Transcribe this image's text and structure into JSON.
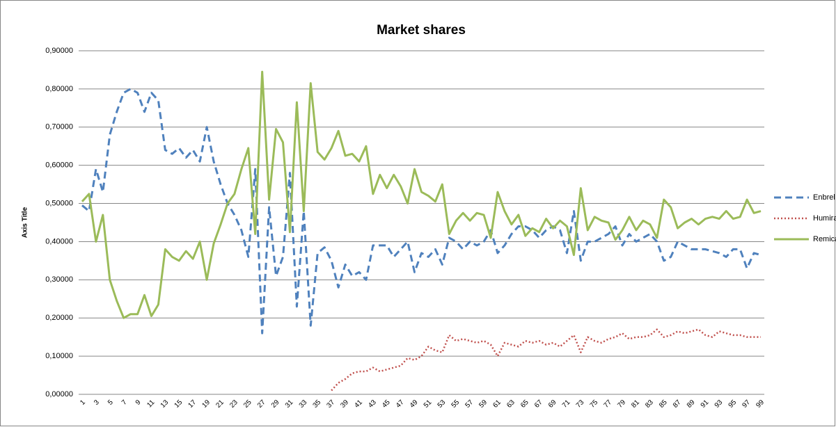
{
  "chart_data": {
    "type": "line",
    "title": "Market shares",
    "y_label": "Axis Title",
    "categories": [
      1,
      null,
      3,
      null,
      5,
      null,
      7,
      null,
      9,
      null,
      11,
      null,
      13,
      null,
      15,
      null,
      17,
      null,
      19,
      null,
      21,
      null,
      23,
      null,
      25,
      null,
      27,
      null,
      29,
      null,
      31,
      null,
      33,
      null,
      35,
      null,
      37,
      null,
      39,
      null,
      41,
      null,
      43,
      null,
      45,
      null,
      47,
      null,
      49,
      null,
      51,
      null,
      53,
      null,
      55,
      null,
      57,
      null,
      59,
      null,
      61,
      null,
      63,
      null,
      65,
      null,
      67,
      null,
      69,
      null,
      71,
      null,
      73,
      null,
      75,
      null,
      77,
      null,
      79,
      null,
      81,
      null,
      83,
      null,
      85,
      null,
      87,
      null,
      89,
      null,
      91,
      null,
      93,
      null,
      95,
      null,
      97,
      null,
      99
    ],
    "series": [
      {
        "name": "Enbrel",
        "color": "#4f81bd",
        "dash": "dashed",
        "values": [
          0.495,
          0.48,
          0.59,
          0.53,
          0.68,
          0.74,
          0.79,
          0.8,
          0.79,
          0.74,
          0.79,
          0.77,
          0.64,
          0.63,
          0.645,
          0.62,
          0.64,
          0.61,
          0.7,
          0.61,
          0.55,
          0.5,
          0.47,
          0.43,
          0.36,
          0.59,
          0.16,
          0.49,
          0.31,
          0.36,
          0.58,
          0.23,
          0.48,
          0.18,
          0.37,
          0.385,
          0.35,
          0.28,
          0.34,
          0.31,
          0.32,
          0.3,
          0.39,
          0.39,
          0.39,
          0.36,
          0.38,
          0.4,
          0.32,
          0.37,
          0.36,
          0.38,
          0.34,
          0.41,
          0.4,
          0.38,
          0.4,
          0.39,
          0.4,
          0.43,
          0.37,
          0.39,
          0.42,
          0.44,
          0.44,
          0.43,
          0.41,
          0.43,
          0.44,
          0.43,
          0.37,
          0.48,
          0.35,
          0.4,
          0.4,
          0.41,
          0.42,
          0.44,
          0.39,
          0.42,
          0.4,
          0.41,
          0.42,
          0.4,
          0.35,
          0.36,
          0.4,
          0.39,
          0.38,
          0.38,
          0.38,
          0.375,
          0.37,
          0.36,
          0.38,
          0.38,
          0.33,
          0.37,
          0.365
        ]
      },
      {
        "name": "Humira",
        "color": "#c0504d",
        "dash": "dotted",
        "values": [
          null,
          null,
          null,
          null,
          null,
          null,
          null,
          null,
          null,
          null,
          null,
          null,
          null,
          null,
          null,
          null,
          null,
          null,
          null,
          null,
          null,
          null,
          null,
          null,
          null,
          null,
          null,
          null,
          null,
          null,
          null,
          null,
          null,
          null,
          null,
          null,
          0.01,
          0.03,
          0.04,
          0.055,
          0.06,
          0.06,
          0.07,
          0.06,
          0.065,
          0.07,
          0.075,
          0.095,
          0.09,
          0.1,
          0.125,
          0.115,
          0.11,
          0.155,
          0.14,
          0.145,
          0.14,
          0.135,
          0.14,
          0.13,
          0.1,
          0.135,
          0.13,
          0.125,
          0.14,
          0.135,
          0.14,
          0.13,
          0.135,
          0.125,
          0.14,
          0.155,
          0.11,
          0.15,
          0.14,
          0.135,
          0.145,
          0.15,
          0.16,
          0.145,
          0.15,
          0.15,
          0.155,
          0.17,
          0.15,
          0.155,
          0.165,
          0.16,
          0.165,
          0.17,
          0.155,
          0.15,
          0.165,
          0.16,
          0.155,
          0.155,
          0.15,
          0.15,
          0.15
        ]
      },
      {
        "name": "Remicade",
        "color": "#9bbb59",
        "dash": "solid",
        "values": [
          0.505,
          0.525,
          0.4,
          0.47,
          0.3,
          0.245,
          0.2,
          0.21,
          0.21,
          0.26,
          0.205,
          0.235,
          0.38,
          0.36,
          0.35,
          0.375,
          0.355,
          0.4,
          0.3,
          0.395,
          0.445,
          0.5,
          0.525,
          0.59,
          0.645,
          0.42,
          0.845,
          0.51,
          0.695,
          0.66,
          0.425,
          0.765,
          0.48,
          0.815,
          0.635,
          0.615,
          0.645,
          0.69,
          0.625,
          0.63,
          0.61,
          0.65,
          0.525,
          0.575,
          0.54,
          0.575,
          0.545,
          0.5,
          0.59,
          0.53,
          0.52,
          0.505,
          0.55,
          0.42,
          0.455,
          0.475,
          0.455,
          0.475,
          0.47,
          0.41,
          0.53,
          0.48,
          0.445,
          0.47,
          0.415,
          0.435,
          0.425,
          0.46,
          0.435,
          0.455,
          0.44,
          0.365,
          0.54,
          0.43,
          0.465,
          0.455,
          0.45,
          0.405,
          0.43,
          0.465,
          0.43,
          0.455,
          0.445,
          0.41,
          0.51,
          0.49,
          0.435,
          0.45,
          0.46,
          0.445,
          0.46,
          0.465,
          0.46,
          0.48,
          0.46,
          0.465,
          0.51,
          0.475,
          0.48
        ]
      }
    ],
    "ylim": [
      0,
      0.9
    ],
    "yticks": [
      {
        "value": 0,
        "label": "0,00000"
      },
      {
        "value": 0.1,
        "label": "0,10000"
      },
      {
        "value": 0.2,
        "label": "0,20000"
      },
      {
        "value": 0.3,
        "label": "0,30000"
      },
      {
        "value": 0.4,
        "label": "0,40000"
      },
      {
        "value": 0.5,
        "label": "0,50000"
      },
      {
        "value": 0.6,
        "label": "0,60000"
      },
      {
        "value": 0.7,
        "label": "0,70000"
      },
      {
        "value": 0.8,
        "label": "0,80000"
      },
      {
        "value": 0.9,
        "label": "0,90000"
      }
    ],
    "grid": true,
    "legend": "right"
  }
}
